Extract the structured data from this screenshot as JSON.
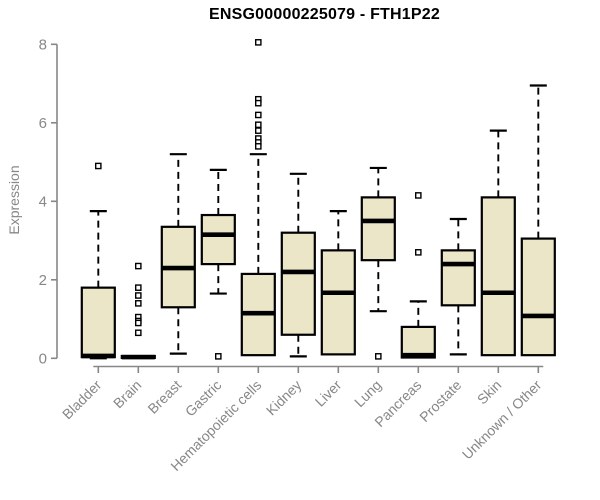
{
  "chart": {
    "title": "ENSG00000225079 - FTH1P22",
    "ylabel": "Expression"
  },
  "chart_data": {
    "type": "boxplot",
    "title": "ENSG00000225079 - FTH1P22",
    "xlabel": "",
    "ylabel": "Expression",
    "ylim": [
      0,
      8
    ],
    "yticks": [
      0,
      2,
      4,
      6,
      8
    ],
    "grid": false,
    "legend": "none",
    "categories": [
      "Bladder",
      "Brain",
      "Breast",
      "Gastric",
      "Hematopoietic cells",
      "Kidney",
      "Liver",
      "Lung",
      "Pancreas",
      "Prostate",
      "Skin",
      "Unknown / Other"
    ],
    "series": [
      {
        "label": "Bladder",
        "whislo": 0.0,
        "q1": 0.03,
        "med": 0.06,
        "q3": 1.8,
        "whishi": 3.75,
        "fliers": [
          4.9
        ]
      },
      {
        "label": "Brain",
        "whislo": 0.0,
        "q1": 0.01,
        "med": 0.03,
        "q3": 0.06,
        "whishi": 0.06,
        "fliers": [
          2.35,
          1.8,
          1.6,
          1.4,
          1.05,
          0.95,
          0.9,
          0.65
        ]
      },
      {
        "label": "Breast",
        "whislo": 0.12,
        "q1": 1.3,
        "med": 2.3,
        "q3": 3.35,
        "whishi": 5.2,
        "fliers": []
      },
      {
        "label": "Gastric",
        "whislo": 1.65,
        "q1": 2.4,
        "med": 3.15,
        "q3": 3.65,
        "whishi": 4.8,
        "fliers": [
          0.05
        ]
      },
      {
        "label": "Hematopoietic cells",
        "whislo": 0.08,
        "q1": 0.08,
        "med": 1.15,
        "q3": 2.15,
        "whishi": 5.2,
        "fliers": [
          8.05,
          6.6,
          6.5,
          6.2,
          5.95,
          5.8,
          5.6,
          5.5,
          5.4
        ]
      },
      {
        "label": "Kidney",
        "whislo": 0.05,
        "q1": 0.6,
        "med": 2.2,
        "q3": 3.2,
        "whishi": 4.7,
        "fliers": []
      },
      {
        "label": "Liver",
        "whislo": 0.1,
        "q1": 0.1,
        "med": 1.67,
        "q3": 2.75,
        "whishi": 3.75,
        "fliers": []
      },
      {
        "label": "Lung",
        "whislo": 1.2,
        "q1": 2.5,
        "med": 3.5,
        "q3": 4.1,
        "whishi": 4.85,
        "fliers": [
          0.05
        ]
      },
      {
        "label": "Pancreas",
        "whislo": 0.0,
        "q1": 0.02,
        "med": 0.08,
        "q3": 0.8,
        "whishi": 1.45,
        "fliers": [
          4.15,
          2.7
        ]
      },
      {
        "label": "Prostate",
        "whislo": 0.1,
        "q1": 1.35,
        "med": 2.4,
        "q3": 2.75,
        "whishi": 3.55,
        "fliers": []
      },
      {
        "label": "Skin",
        "whislo": 0.08,
        "q1": 0.08,
        "med": 1.67,
        "q3": 4.1,
        "whishi": 5.8,
        "fliers": []
      },
      {
        "label": "Unknown / Other",
        "whislo": 0.08,
        "q1": 0.08,
        "med": 1.08,
        "q3": 3.05,
        "whishi": 6.95,
        "fliers": []
      }
    ],
    "colors": {
      "box_fill": "#ece6c8",
      "box_border": "#000000",
      "median": "#000000",
      "whisker": "#000000",
      "flier_stroke": "#000000",
      "flier_fill": "#ffffff",
      "axis": "#878787",
      "tick_label": "#878787",
      "title": "#000000",
      "background": "#ffffff"
    }
  }
}
